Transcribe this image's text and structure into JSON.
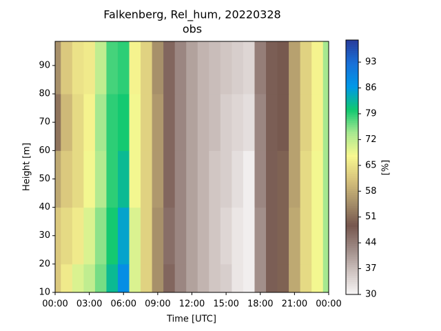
{
  "chart_data": {
    "type": "heatmap",
    "title": "Falkenberg, Rel_hum, 20220328",
    "subtitle": "obs",
    "xlabel": "Time [UTC]",
    "ylabel": "Height [m]",
    "colorbar_label": "[%]",
    "x": [
      0,
      1,
      2,
      3,
      4,
      5,
      6,
      7,
      8,
      9,
      10,
      11,
      12,
      13,
      14,
      15,
      16,
      17,
      18,
      19,
      20,
      21,
      22,
      23,
      24
    ],
    "y": [
      10,
      30,
      50,
      70,
      90
    ],
    "z": [
      [
        62,
        66,
        70,
        72,
        76,
        82,
        88,
        70,
        63,
        55,
        47,
        43,
        40,
        38,
        36,
        35,
        32,
        31,
        42,
        48,
        50,
        58,
        64,
        68,
        74
      ],
      [
        62,
        64,
        66,
        70,
        75,
        80,
        85,
        70,
        63,
        55,
        46,
        43,
        40,
        38,
        36,
        34,
        32,
        31,
        42,
        48,
        50,
        58,
        64,
        68,
        74
      ],
      [
        58,
        62,
        64,
        68,
        73,
        79,
        82,
        68,
        63,
        56,
        47,
        43,
        40,
        38,
        36,
        35,
        33,
        31,
        43,
        48,
        50,
        57,
        64,
        68,
        74
      ],
      [
        52,
        60,
        64,
        67,
        74,
        79,
        80,
        68,
        63,
        56,
        47,
        43,
        40,
        38,
        37,
        35,
        34,
        33,
        43,
        48,
        49,
        57,
        63,
        67,
        74
      ],
      [
        55,
        62,
        65,
        66,
        72,
        78,
        79,
        67,
        63,
        55,
        47,
        43,
        40,
        38,
        37,
        36,
        35,
        34,
        44,
        48,
        49,
        57,
        63,
        67,
        74
      ]
    ],
    "xlim": [
      0,
      24
    ],
    "xticks": [
      {
        "value": 0,
        "label": "00:00"
      },
      {
        "value": 3,
        "label": "03:00"
      },
      {
        "value": 6,
        "label": "06:00"
      },
      {
        "value": 9,
        "label": "09:00"
      },
      {
        "value": 12,
        "label": "12:00"
      },
      {
        "value": 15,
        "label": "15:00"
      },
      {
        "value": 18,
        "label": "18:00"
      },
      {
        "value": 21,
        "label": "21:00"
      },
      {
        "value": 24,
        "label": "00:00"
      }
    ],
    "ylim": [
      10,
      98.5
    ],
    "yticks": [
      10,
      20,
      30,
      40,
      50,
      60,
      70,
      80,
      90
    ],
    "clim": [
      30,
      99
    ],
    "cticks": [
      30,
      37,
      44,
      51,
      58,
      65,
      72,
      79,
      86,
      93
    ],
    "colormap": [
      "#f8f6f6",
      "#cfc4c1",
      "#9e8a85",
      "#76574e",
      "#a8916a",
      "#d8c47c",
      "#f8f890",
      "#a8e890",
      "#10c870",
      "#0098e8",
      "#1870d8",
      "#283c9c"
    ]
  }
}
